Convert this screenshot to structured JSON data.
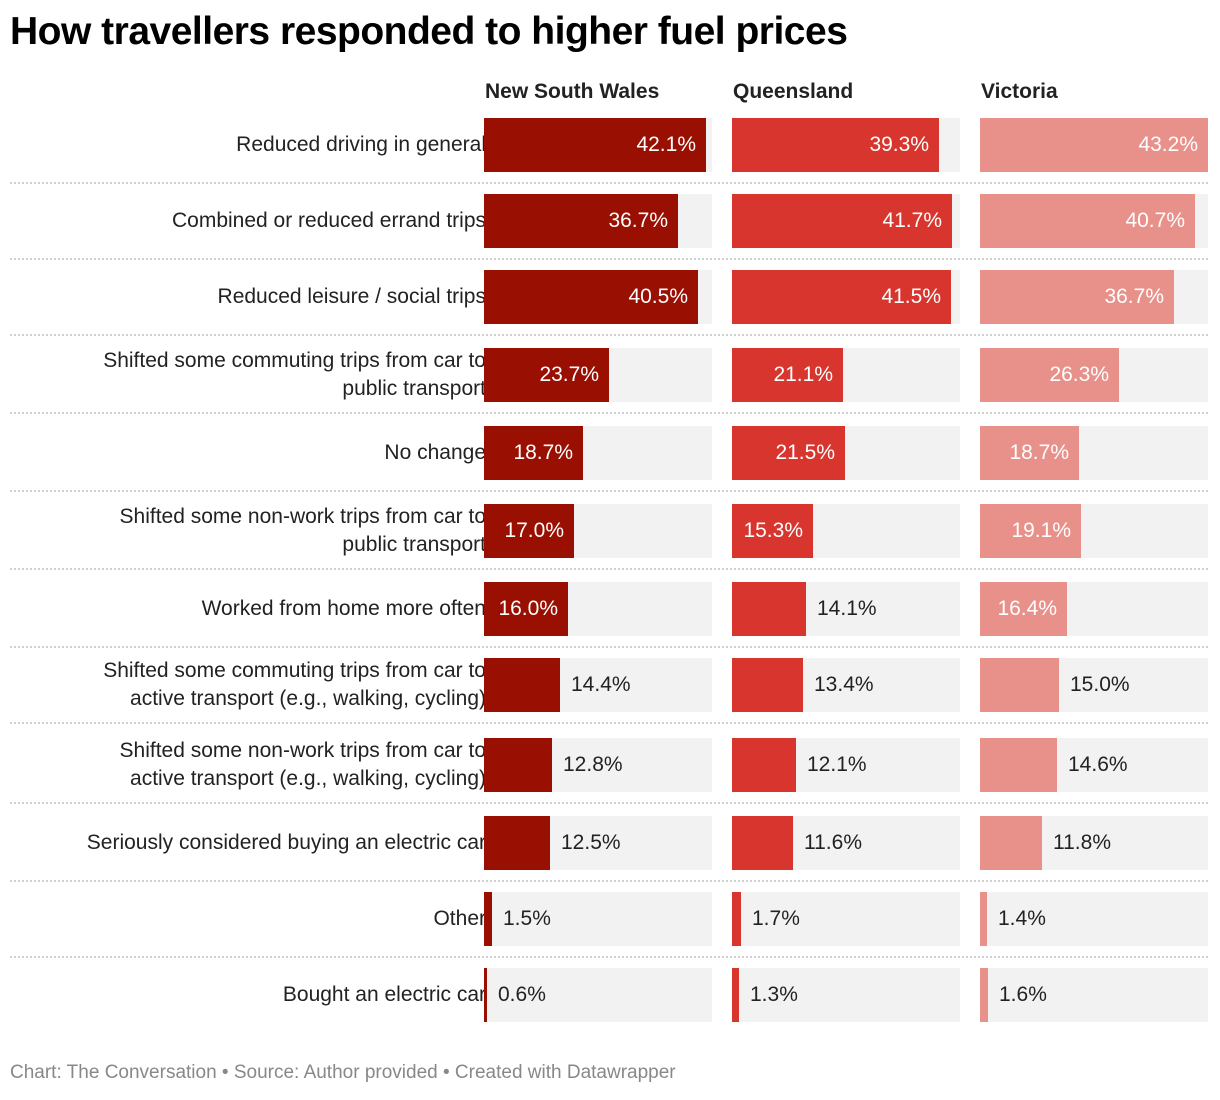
{
  "chart_data": {
    "type": "bar",
    "orientation": "horizontal",
    "title": "How travellers responded to higher fuel prices",
    "unit": "%",
    "xlim": [
      0,
      43.2
    ],
    "categories": [
      "Reduced driving in general",
      "Combined or reduced errand trips",
      "Reduced leisure / social trips",
      "Shifted some commuting trips from car to public transport",
      "No change",
      "Shifted some non-work trips from car to public transport",
      "Worked from home more often",
      "Shifted some commuting trips from car to active transport (e.g., walking, cycling)",
      "Shifted some non-work trips from car to active transport (e.g., walking, cycling)",
      "Seriously considered buying an electric car",
      "Other",
      "Bought an electric car"
    ],
    "series": [
      {
        "name": "New South Wales",
        "color": "#990f02",
        "values": [
          42.1,
          36.7,
          40.5,
          23.7,
          18.7,
          17.0,
          16.0,
          14.4,
          12.8,
          12.5,
          1.5,
          0.6
        ]
      },
      {
        "name": "Queensland",
        "color": "#d7352d",
        "values": [
          39.3,
          41.7,
          41.5,
          21.1,
          21.5,
          15.3,
          14.1,
          13.4,
          12.1,
          11.6,
          1.7,
          1.3
        ]
      },
      {
        "name": "Victoria",
        "color": "#e8908a",
        "values": [
          43.2,
          40.7,
          36.7,
          26.3,
          18.7,
          19.1,
          16.4,
          15.0,
          14.6,
          11.8,
          1.4,
          1.6
        ]
      }
    ],
    "value_labels": [
      [
        "42.1%",
        "36.7%",
        "40.5%",
        "23.7%",
        "18.7%",
        "17.0%",
        "16.0%",
        "14.4%",
        "12.8%",
        "12.5%",
        "1.5%",
        "0.6%"
      ],
      [
        "39.3%",
        "41.7%",
        "41.5%",
        "21.1%",
        "21.5%",
        "15.3%",
        "14.1%",
        "13.4%",
        "12.1%",
        "11.6%",
        "1.7%",
        "1.3%"
      ],
      [
        "43.2%",
        "40.7%",
        "36.7%",
        "26.3%",
        "18.7%",
        "19.1%",
        "16.4%",
        "15.0%",
        "14.6%",
        "11.8%",
        "1.4%",
        "1.6%"
      ]
    ],
    "label_lines": [
      [
        "Reduced driving in general"
      ],
      [
        "Combined or reduced errand trips"
      ],
      [
        "Reduced leisure / social trips"
      ],
      [
        "Shifted some commuting trips from car to",
        "public transport"
      ],
      [
        "No change"
      ],
      [
        "Shifted some non-work trips from car to",
        "public transport"
      ],
      [
        "Worked from home more often"
      ],
      [
        "Shifted some commuting trips from car to",
        "active transport (e.g., walking, cycling)"
      ],
      [
        "Shifted some non-work trips from car to",
        "active transport (e.g., walking, cycling)"
      ],
      [
        "Seriously considered buying an electric car"
      ],
      [
        "Other"
      ],
      [
        "Bought an electric car"
      ]
    ]
  },
  "footer": "Chart: The Conversation • Source: Author provided • Created with Datawrapper"
}
